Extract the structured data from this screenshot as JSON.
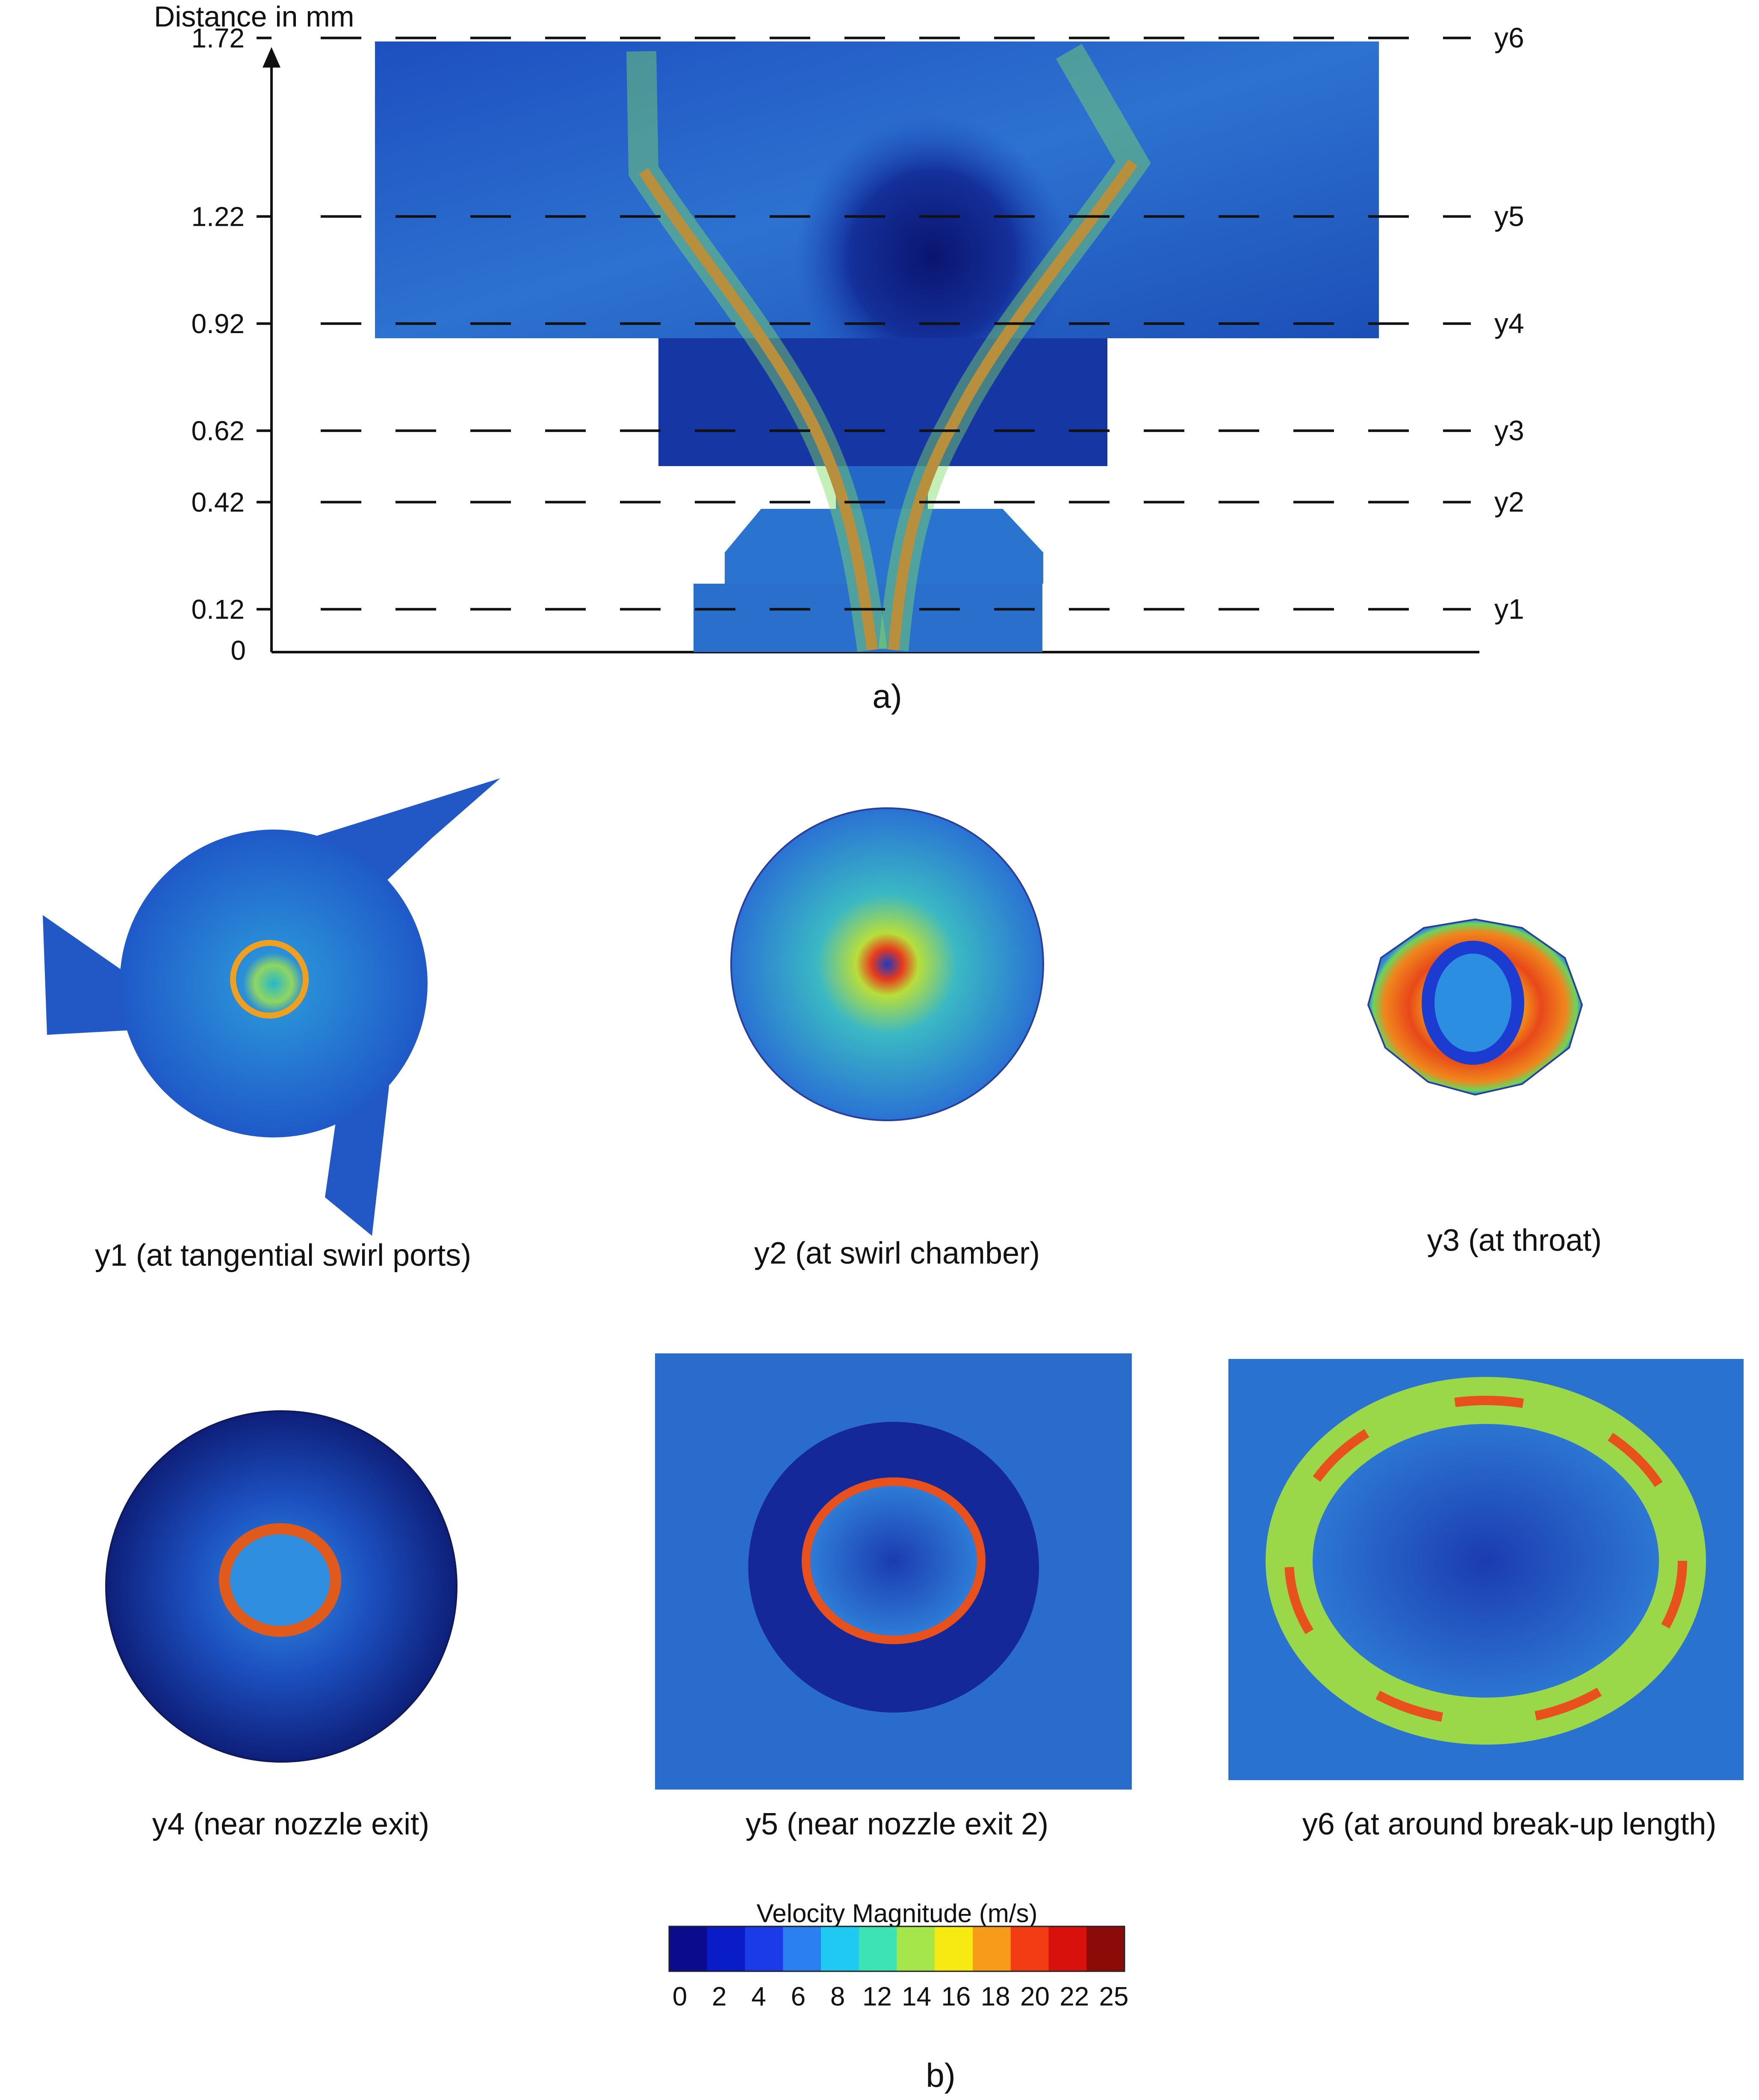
{
  "panel_a": {
    "axis_title": "Distance in mm",
    "zero_label": "0",
    "levels": [
      {
        "value": 0.12,
        "tick": "0.12",
        "name": "y1"
      },
      {
        "value": 0.42,
        "tick": "0.42",
        "name": "y2"
      },
      {
        "value": 0.62,
        "tick": "0.62",
        "name": "y3"
      },
      {
        "value": 0.92,
        "tick": "0.92",
        "name": "y4"
      },
      {
        "value": 1.22,
        "tick": "1.22",
        "name": "y5"
      },
      {
        "value": 1.72,
        "tick": "1.72",
        "name": "y6"
      }
    ],
    "caption": "a)"
  },
  "panel_b": {
    "sections": [
      {
        "caption": "y1 (at tangential swirl ports)"
      },
      {
        "caption": "y2 (at swirl chamber)"
      },
      {
        "caption": "y3 (at throat)"
      },
      {
        "caption": "y4 (near nozzle exit)"
      },
      {
        "caption": "y5 (near nozzle exit 2)"
      },
      {
        "caption": "y6 (at around break-up length)"
      }
    ],
    "caption": "b)"
  },
  "colorbar": {
    "title": "Velocity Magnitude (m/s)",
    "ticks": [
      "0",
      "2",
      "4",
      "6",
      "8",
      "12",
      "14",
      "16",
      "18",
      "20",
      "22",
      "25"
    ],
    "colors": [
      "#0b0b8e",
      "#0a1cc8",
      "#1c3be8",
      "#2b7ff0",
      "#1fc9f2",
      "#3ee3b4",
      "#a5e64a",
      "#f6ea12",
      "#f89a1a",
      "#f23c14",
      "#d9110c",
      "#8c0a08"
    ]
  }
}
